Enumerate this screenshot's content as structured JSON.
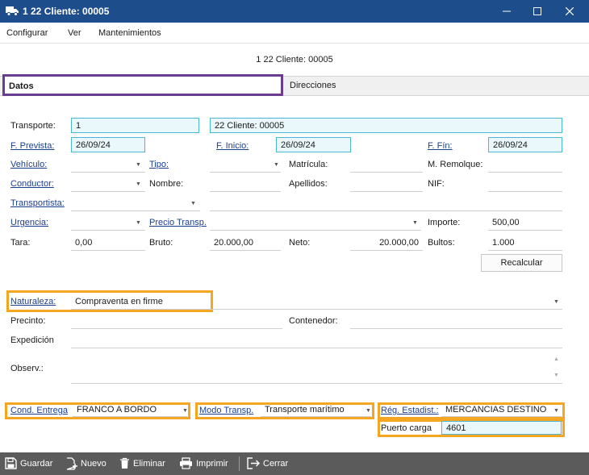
{
  "window": {
    "title": "1 22 Cliente: 00005"
  },
  "menu": [
    "Configurar",
    "Ver",
    "Mantenimientos"
  ],
  "subtitle": "1 22 Cliente: 00005",
  "tabs": {
    "datos": "Datos",
    "direcciones": "Direcciones"
  },
  "form": {
    "transporte": {
      "label": "Transporte:",
      "value": "1",
      "desc": "22 Cliente: 00005"
    },
    "f_prevista": {
      "label": "F. Prevista:",
      "value": "26/09/24"
    },
    "f_inicio": {
      "label": "F. Inicio:",
      "value": "26/09/24"
    },
    "f_fin": {
      "label": "F. Fín:",
      "value": "26/09/24"
    },
    "vehiculo": {
      "label": "Vehículo:",
      "value": ""
    },
    "tipo": {
      "label": "Tipo:",
      "value": ""
    },
    "matricula": {
      "label": "Matrícula:",
      "value": ""
    },
    "m_remolque": {
      "label": "M. Remolque:",
      "value": ""
    },
    "conductor": {
      "label": "Conductor:",
      "value": ""
    },
    "nombre": {
      "label": "Nombre:",
      "value": ""
    },
    "apellidos": {
      "label": "Apellidos:",
      "value": ""
    },
    "nif": {
      "label": "NIF:",
      "value": ""
    },
    "transportista": {
      "label": "Transportista:",
      "value": ""
    },
    "urgencia": {
      "label": "Urgencia:",
      "value": ""
    },
    "precio_transp": {
      "label": "Precio Transp.",
      "value": ""
    },
    "importe": {
      "label": "Importe:",
      "value": "500,00"
    },
    "tara": {
      "label": "Tara:",
      "value": "0,00"
    },
    "bruto": {
      "label": "Bruto:",
      "value": "20.000,00"
    },
    "neto": {
      "label": "Neto:",
      "value": "20.000,00"
    },
    "bultos": {
      "label": "Bultos:",
      "value": "1.000"
    },
    "recalcular": "Recalcular",
    "naturaleza": {
      "label": "Naturaleza:",
      "value": "Compraventa en firme"
    },
    "precinto": {
      "label": "Precinto:",
      "value": ""
    },
    "contenedor": {
      "label": "Contenedor:",
      "value": ""
    },
    "expedicion": {
      "label": "Expedición",
      "value": ""
    },
    "observ": {
      "label": "Observ.:",
      "value": ""
    },
    "cond_entrega": {
      "label": "Cond. Entrega",
      "value": "FRANCO A BORDO"
    },
    "modo_transp": {
      "label": "Modo Transp.",
      "value": "Transporte marítimo"
    },
    "reg_estadist": {
      "label": "Rég. Estadist.:",
      "value": "MERCANCIAS DESTINO"
    },
    "puerto_carga": {
      "label": "Puerto carga",
      "value": "4601"
    }
  },
  "footer": {
    "guardar": "Guardar",
    "nuevo": "Nuevo",
    "eliminar": "Eliminar",
    "imprimir": "Imprimir",
    "cerrar": "Cerrar"
  },
  "colors": {
    "titlebar": "#1e4d8c",
    "highlight": "#f4a522",
    "tab_highlight": "#6a3b8f",
    "field_box": "#4cb8d6",
    "footer": "#5b5b5b"
  }
}
